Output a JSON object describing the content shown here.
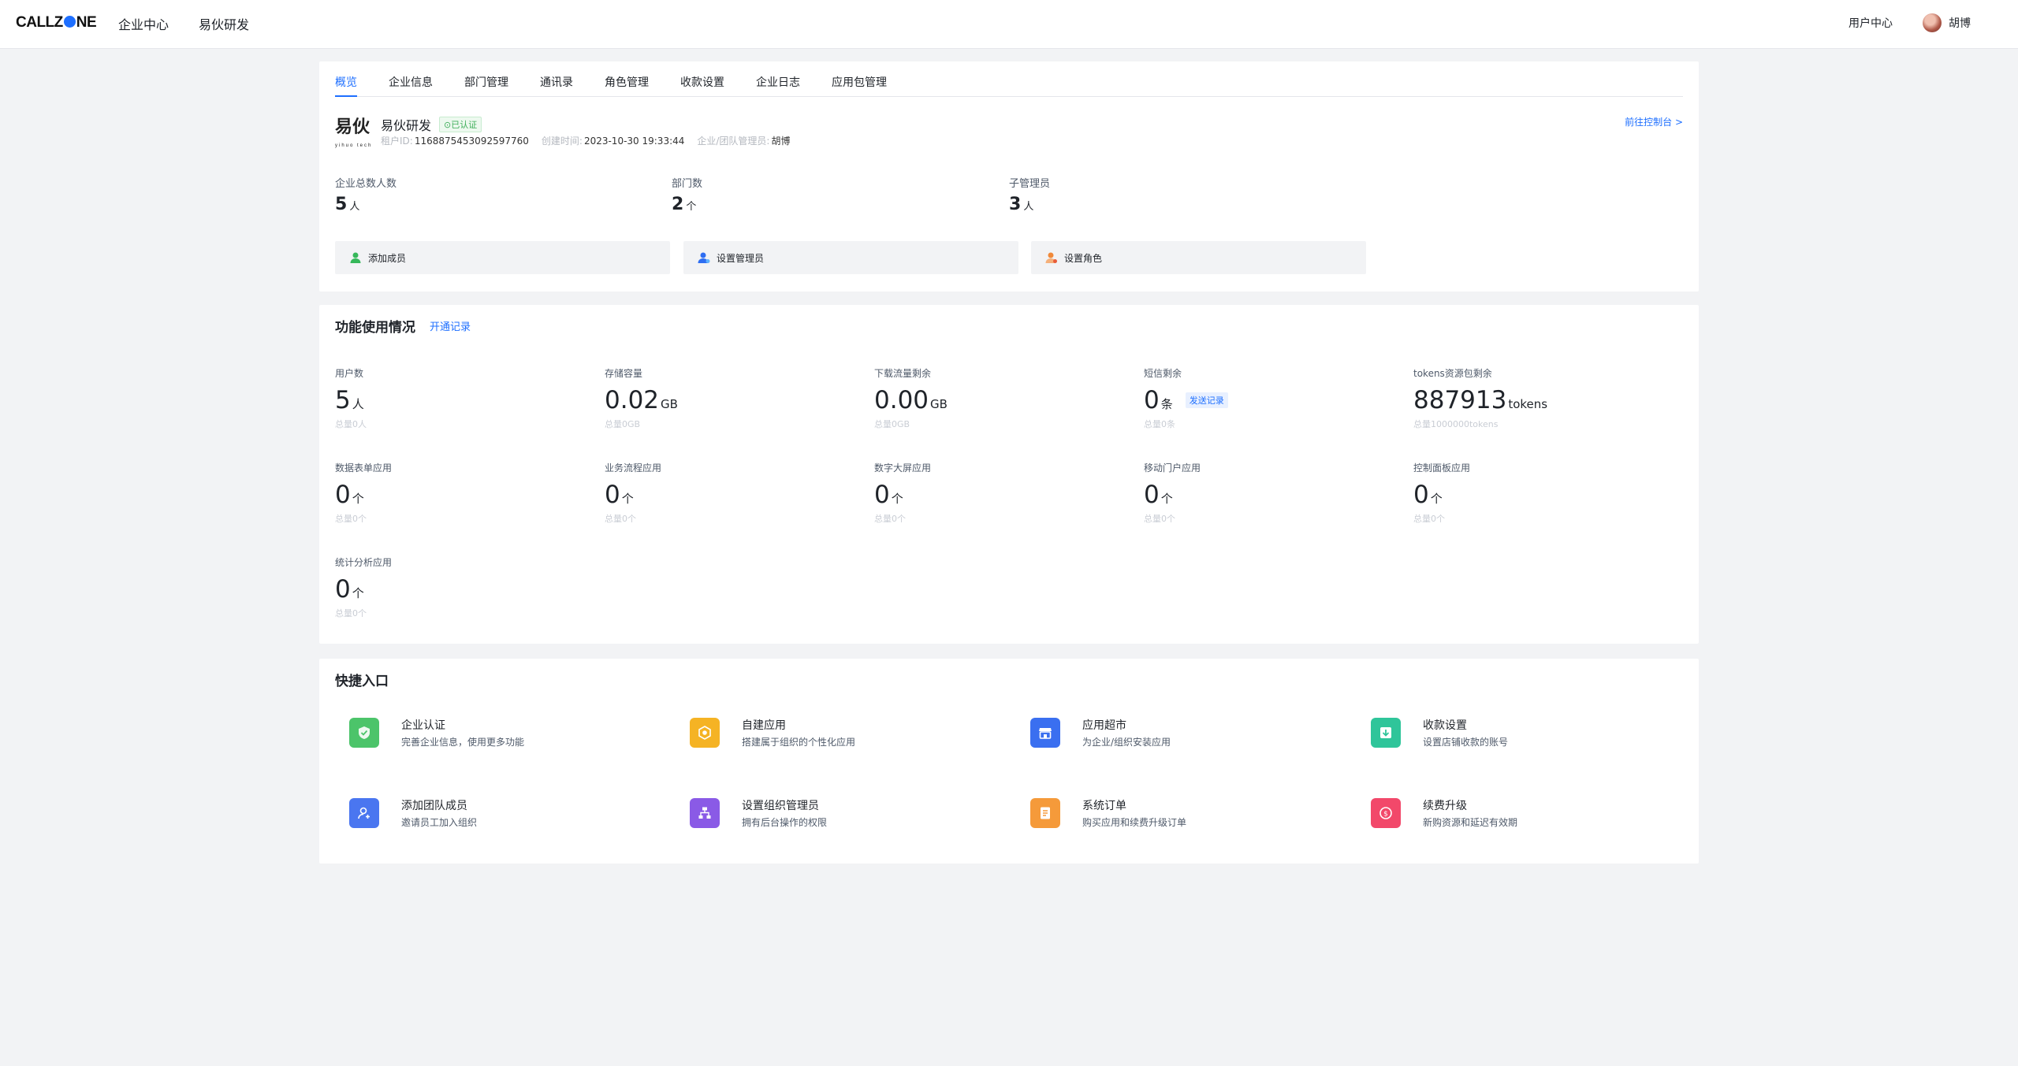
{
  "header": {
    "logo_pre": "CALLZ",
    "logo_post": "NE",
    "nav": [
      "企业中心",
      "易伙研发"
    ],
    "user_center": "用户中心",
    "user_name": "胡博"
  },
  "overview": {
    "tabs": [
      "概览",
      "企业信息",
      "部门管理",
      "通讯录",
      "角色管理",
      "收款设置",
      "企业日志",
      "应用包管理"
    ],
    "enterprise": {
      "logo_text": "易伙",
      "logo_sub": "yihuo tech",
      "name": "易伙研发",
      "badge": "已认证",
      "tenant_label": "租户ID:",
      "tenant_id": "1168875453092597760",
      "created_label": "创建时间:",
      "created": "2023-10-30 19:33:44",
      "admin_label": "企业/团队管理员:",
      "admin": "胡博"
    },
    "console_link": "前往控制台 >",
    "stats": [
      {
        "label": "企业总数人数",
        "value": "5",
        "unit": "人"
      },
      {
        "label": "部门数",
        "value": "2",
        "unit": "个"
      },
      {
        "label": "子管理员",
        "value": "3",
        "unit": "人"
      }
    ],
    "actions": [
      "添加成员",
      "设置管理员",
      "设置角色"
    ]
  },
  "usage": {
    "title": "功能使用情况",
    "link": "开通记录",
    "sms_link": "发送记录",
    "metrics": [
      {
        "label": "用户数",
        "value": "5",
        "unit": "人",
        "total": "总量0人"
      },
      {
        "label": "存储容量",
        "value": "0.02",
        "unit": "GB",
        "total": "总量0GB"
      },
      {
        "label": "下载流量剩余",
        "value": "0.00",
        "unit": "GB",
        "total": "总量0GB"
      },
      {
        "label": "短信剩余",
        "value": "0",
        "unit": "条",
        "total": "总量0条"
      },
      {
        "label": "tokens资源包剩余",
        "value": "887913",
        "unit": "tokens",
        "total": "总量1000000tokens"
      },
      {
        "label": "数据表单应用",
        "value": "0",
        "unit": "个",
        "total": "总量0个"
      },
      {
        "label": "业务流程应用",
        "value": "0",
        "unit": "个",
        "total": "总量0个"
      },
      {
        "label": "数字大屏应用",
        "value": "0",
        "unit": "个",
        "total": "总量0个"
      },
      {
        "label": "移动门户应用",
        "value": "0",
        "unit": "个",
        "total": "总量0个"
      },
      {
        "label": "控制面板应用",
        "value": "0",
        "unit": "个",
        "total": "总量0个"
      },
      {
        "label": "统计分析应用",
        "value": "0",
        "unit": "个",
        "total": "总量0个"
      }
    ]
  },
  "shortcuts": {
    "title": "快捷入口",
    "items": [
      {
        "title": "企业认证",
        "desc": "完善企业信息，使用更多功能",
        "color": "#4cc46a",
        "icon": "shield-check-icon"
      },
      {
        "title": "自建应用",
        "desc": "搭建属于组织的个性化应用",
        "color": "#f5b324",
        "icon": "gear-hex-icon"
      },
      {
        "title": "应用超市",
        "desc": "为企业/组织安装应用",
        "color": "#3a6ff0",
        "icon": "store-icon"
      },
      {
        "title": "收款设置",
        "desc": "设置店铺收款的账号",
        "color": "#2fc59a",
        "icon": "download-box-icon"
      },
      {
        "title": "添加团队成员",
        "desc": "邀请员工加入组织",
        "color": "#4a76f0",
        "icon": "add-user-icon"
      },
      {
        "title": "设置组织管理员",
        "desc": "拥有后台操作的权限",
        "color": "#8a5ae6",
        "icon": "org-chart-icon"
      },
      {
        "title": "系统订单",
        "desc": "购买应用和续费升级订单",
        "color": "#f59a3a",
        "icon": "order-list-icon"
      },
      {
        "title": "续费升级",
        "desc": "新购资源和延迟有效期",
        "color": "#f2486a",
        "icon": "renew-coin-icon"
      }
    ]
  }
}
